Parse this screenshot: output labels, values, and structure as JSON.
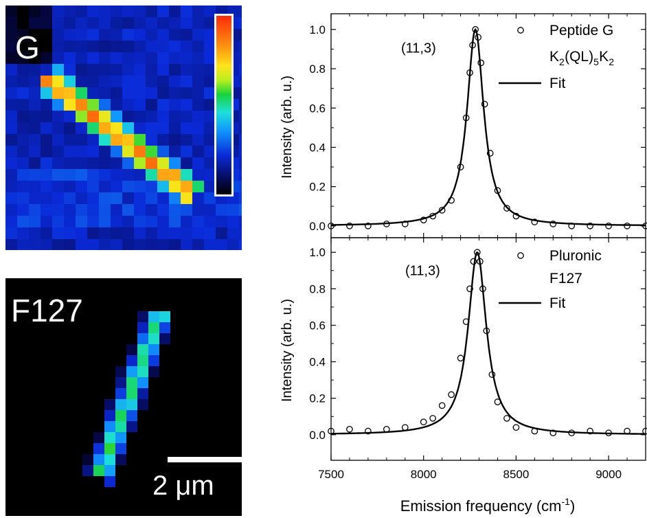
{
  "images": {
    "top": {
      "label": "G",
      "colorbar": "intensity-colorbar"
    },
    "bottom": {
      "label": "F127",
      "scalebar_label": "2 μm"
    }
  },
  "colors": {
    "data": "#000000",
    "background": "#ffffff",
    "map_background": "#000000"
  },
  "chart_data": [
    {
      "type": "line",
      "title": "",
      "xlabel": "Emission frequency (cm⁻¹)",
      "ylabel": "Intensity (arb. u.)",
      "xlim": [
        7500,
        9200
      ],
      "ylim": [
        -0.06,
        1.08
      ],
      "xticks": [
        "7500",
        "8000",
        "8500",
        "9000"
      ],
      "yticks": [
        "0.0",
        "0.2",
        "0.4",
        "0.6",
        "0.8",
        "1.0"
      ],
      "annotation": "(11,3)",
      "legend": [
        {
          "marker": "circle",
          "lines": [
            "Peptide G",
            "K2(QL)5K2"
          ]
        },
        {
          "marker": "line",
          "lines": [
            "Fit"
          ]
        }
      ],
      "peak_position": 8280,
      "peak_fwhm": 110,
      "series": [
        {
          "name": "Peptide G K2(QL)5K2",
          "style": "open-circles",
          "x": [
            7500,
            7600,
            7700,
            7800,
            7900,
            8000,
            8050,
            8100,
            8150,
            8200,
            8230,
            8250,
            8265,
            8280,
            8295,
            8310,
            8330,
            8360,
            8400,
            8450,
            8500,
            8600,
            8700,
            8800,
            8900,
            9000,
            9100,
            9200
          ],
          "y": [
            0.0,
            0.0,
            0.0,
            0.01,
            0.01,
            0.03,
            0.05,
            0.08,
            0.13,
            0.3,
            0.55,
            0.78,
            0.92,
            1.0,
            0.96,
            0.83,
            0.62,
            0.37,
            0.18,
            0.09,
            0.05,
            0.02,
            0.01,
            0.0,
            0.0,
            0.0,
            0.0,
            0.0
          ]
        },
        {
          "name": "Fit",
          "style": "solid-line",
          "x": [
            7500,
            7600,
            7700,
            7800,
            7900,
            8000,
            8050,
            8100,
            8150,
            8200,
            8230,
            8250,
            8265,
            8280,
            8295,
            8310,
            8330,
            8360,
            8400,
            8450,
            8500,
            8600,
            8700,
            8800,
            8900,
            9000,
            9100,
            9200
          ],
          "y": [
            0.0,
            0.0,
            0.01,
            0.01,
            0.02,
            0.03,
            0.05,
            0.08,
            0.13,
            0.3,
            0.55,
            0.78,
            0.92,
            1.0,
            0.96,
            0.83,
            0.62,
            0.37,
            0.18,
            0.09,
            0.05,
            0.02,
            0.01,
            0.01,
            0.0,
            0.0,
            0.0,
            0.0
          ]
        }
      ]
    },
    {
      "type": "line",
      "title": "",
      "xlabel": "Emission frequency (cm⁻¹)",
      "ylabel": "Intensity (arb. u.)",
      "xlim": [
        7500,
        9200
      ],
      "ylim": [
        -0.14,
        1.08
      ],
      "xticks": [
        "7500",
        "8000",
        "8500",
        "9000"
      ],
      "yticks": [
        "0.0",
        "0.2",
        "0.4",
        "0.6",
        "0.8",
        "1.0"
      ],
      "annotation": "(11,3)",
      "legend": [
        {
          "marker": "circle",
          "lines": [
            "Pluronic",
            "F127"
          ]
        },
        {
          "marker": "line",
          "lines": [
            "Fit"
          ]
        }
      ],
      "peak_position": 8290,
      "peak_fwhm": 120,
      "series": [
        {
          "name": "Pluronic F127",
          "style": "open-circles",
          "x": [
            7500,
            7600,
            7700,
            7800,
            7900,
            8000,
            8050,
            8100,
            8150,
            8200,
            8230,
            8250,
            8270,
            8290,
            8305,
            8320,
            8340,
            8370,
            8400,
            8450,
            8500,
            8600,
            8700,
            8800,
            8900,
            9000,
            9100,
            9200
          ],
          "y": [
            0.02,
            0.03,
            0.02,
            0.03,
            0.04,
            0.07,
            0.09,
            0.16,
            0.22,
            0.42,
            0.62,
            0.8,
            0.95,
            1.0,
            0.95,
            0.8,
            0.57,
            0.33,
            0.18,
            0.09,
            0.04,
            0.02,
            0.01,
            0.01,
            0.02,
            0.01,
            0.02,
            0.02
          ]
        },
        {
          "name": "Fit",
          "style": "solid-line",
          "x": [
            7500,
            7600,
            7700,
            7800,
            7900,
            8000,
            8050,
            8100,
            8150,
            8200,
            8230,
            8250,
            8270,
            8290,
            8305,
            8320,
            8340,
            8370,
            8400,
            8450,
            8500,
            8600,
            8700,
            8800,
            8900,
            9000,
            9100,
            9200
          ],
          "y": [
            0.0,
            0.01,
            0.01,
            0.02,
            0.03,
            0.06,
            0.08,
            0.12,
            0.19,
            0.38,
            0.58,
            0.78,
            0.93,
            1.0,
            0.96,
            0.85,
            0.64,
            0.4,
            0.24,
            0.12,
            0.07,
            0.03,
            0.02,
            0.01,
            0.01,
            0.0,
            0.0,
            0.0
          ]
        }
      ]
    }
  ]
}
